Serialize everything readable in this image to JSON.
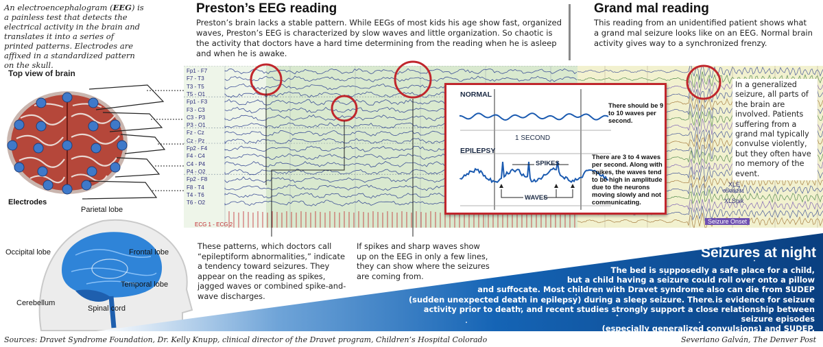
{
  "intro": {
    "part1": "An electroencephalogram (",
    "abbr": "EEG",
    "part2": ") is a painless test that detects the electrical activity in the brain and translates it into a series of printed patterns. Electrodes are affixed in a standardized pattern on the skull."
  },
  "brain_top": {
    "heading": "Top view of brain",
    "electrodes_label": "Electrodes"
  },
  "brain_side": {
    "parietal": "Parietal lobe",
    "frontal": "Frontal lobe",
    "occipital": "Occipital lobe",
    "temporal": "Temporal lobe",
    "cerebellum": "Cerebellum",
    "spinal": "Spinal cord"
  },
  "preston": {
    "title": "Preston’s EEG reading",
    "body": "Preston’s brain lacks a stable pattern. While EEGs of most kids his age show fast, organized waves, Preston’s EEG is characterized by slow waves and little organization. So chaotic is the activity that doctors have a hard time determining from the reading when he is asleep and when he is awake."
  },
  "channels": [
    "Fp1 - F7",
    "F7 - T3",
    "T3 - T5",
    "T5 - O1",
    "Fp1 - F3",
    "F3 - C3",
    "C3 - P3",
    "P3 - O1",
    "Fz - Cz",
    "Cz - Pz",
    "Fp2 - F4",
    "F4 - C4",
    "C4 - P4",
    "P4 - O2",
    "Fp2 - F8",
    "F8 - T4",
    "T4 - T6",
    "T6 - O2",
    "ECG 1 - ECG 2"
  ],
  "callout1": "These patterns, which doctors call “epileptiform abnormalities,” indicate a tendency toward seizures. They appear on the reading as spikes, jagged waves or combined spike-and-wave discharges.",
  "callout2": "If spikes and sharp waves show up on the EEG in only a few lines, they can show where the seizures are coming from.",
  "inset": {
    "normal_label": "NORMAL",
    "normal_note": "There should be 9 to 10 waves per second.",
    "second_label": "1 SECOND",
    "epilepsy_label": "EPILEPSY",
    "spikes_label": "SPIKES",
    "waves_label": "WAVES",
    "epilepsy_note": "There are 3 to 4 waves per second. Along with spikes, the waves tend to be high in amplitude due to the neurons moving slowly and not communicating."
  },
  "grandmal": {
    "title": "Grand mal reading",
    "body": "This reading from an unidentified patient shows what a grand mal seizure looks like on an EEG. Normal brain activity gives way to a synchronized frenzy.",
    "note": "In a generalized seizure, all parts of the brain are involved. Patients suffering from a grand mal typically convulse violently, but they often have no memory of the event.",
    "onset_label": "Seizure Onset",
    "marker_label": "XLSpik",
    "marker_label2": "XLE",
    "marker_date": "06/08/201"
  },
  "seizures": {
    "title": "Seizures at night",
    "lines": [
      "The bed is supposedly a safe place for a child,",
      "but a child having a seizure could roll over onto a pillow",
      "and suffocate. Most children with Dravet syndrome also can die from SUDEP",
      "(sudden unexpected death in epilepsy) during a sleep seizure. There is evidence for seizure",
      "activity prior to death, and recent studies strongly support a close relationship between seizure episodes",
      "(especially generalized convulsions) and SUDEP."
    ]
  },
  "footer": {
    "sources": "Sources: Dravet Syndrome Foundation, Dr. Kelly Knupp, clinical director of the Dravet program, Children’s Hospital Colorado",
    "credit": "Severiano Galván, The Denver Post"
  },
  "colors": {
    "accent_red": "#c0262c",
    "eeg_green": "#d9e9cf",
    "trace_blue": "#2c3f8f",
    "band_blue": "#0d5aa7",
    "brain_red": "#b5473a",
    "electrode_blue": "#3f79c9"
  }
}
